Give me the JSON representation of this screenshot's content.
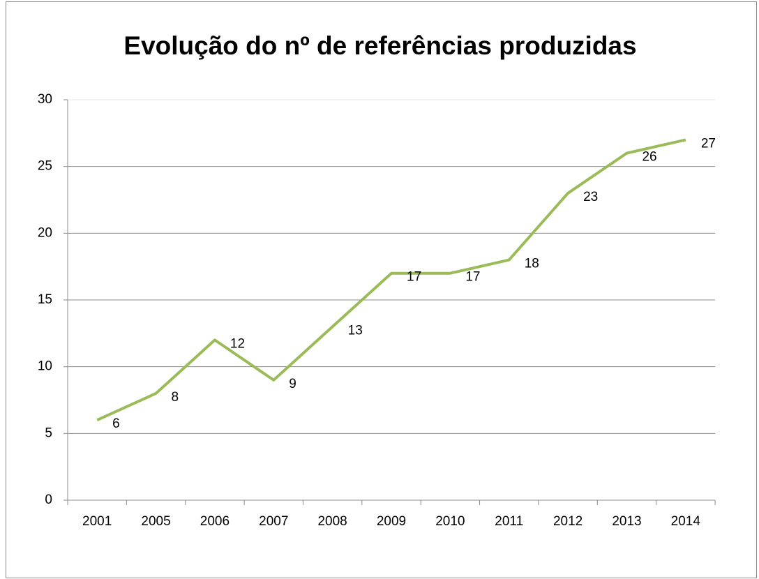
{
  "chart_data": {
    "type": "line",
    "title": "Evolução do nº de referências produzidas",
    "categories": [
      "2001",
      "2005",
      "2006",
      "2007",
      "2008",
      "2009",
      "2010",
      "2011",
      "2012",
      "2013",
      "2014"
    ],
    "values": [
      6,
      8,
      12,
      9,
      13,
      17,
      17,
      18,
      23,
      26,
      27
    ],
    "color": "#9bbb59",
    "ylim": [
      0,
      30
    ],
    "yticks": [
      0,
      5,
      10,
      15,
      20,
      25,
      30
    ],
    "grid": true,
    "data_labels": true
  }
}
